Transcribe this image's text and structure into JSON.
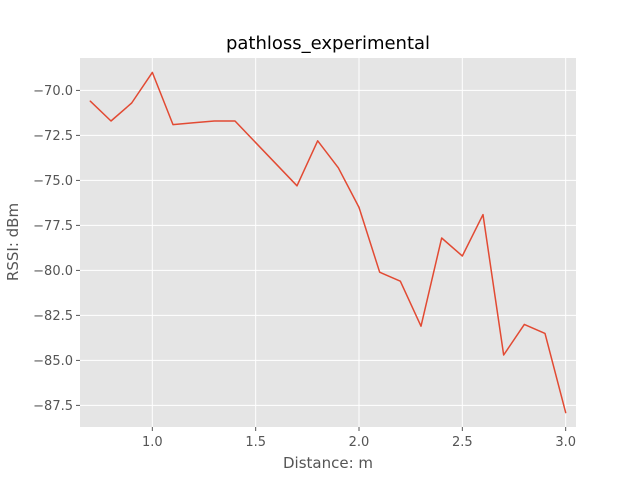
{
  "chart_data": {
    "type": "line",
    "title": "pathloss_experimental",
    "xlabel": "Distance: m",
    "ylabel": "RSSI: dBm",
    "xlim": [
      0.65,
      3.05
    ],
    "ylim": [
      -88.7,
      -68.2
    ],
    "xticks": [
      1.0,
      1.5,
      2.0,
      2.5,
      3.0
    ],
    "xtick_labels": [
      "1.0",
      "1.5",
      "2.0",
      "2.5",
      "3.0"
    ],
    "yticks": [
      -70.0,
      -72.5,
      -75.0,
      -77.5,
      -80.0,
      -82.5,
      -85.0,
      -87.5
    ],
    "ytick_labels": [
      "−70.0",
      "−72.5",
      "−75.0",
      "−77.5",
      "−80.0",
      "−82.5",
      "−85.0",
      "−87.5"
    ],
    "grid": true,
    "style": "ggplot",
    "background_color": "#e5e5e5",
    "line_color": "#e24a33",
    "series": [
      {
        "x": [
          0.7,
          0.8,
          0.9,
          1.0,
          1.1,
          1.2,
          1.3,
          1.4,
          1.7,
          1.8,
          1.9,
          2.0,
          2.1,
          2.2,
          2.3,
          2.4,
          2.5,
          2.6,
          2.7,
          2.8,
          2.9,
          3.0
        ],
        "y": [
          -70.6,
          -71.7,
          -70.7,
          -69.0,
          -71.9,
          -71.8,
          -71.7,
          -71.7,
          -75.3,
          -72.8,
          -74.3,
          -76.5,
          -80.1,
          -80.6,
          -83.1,
          -78.2,
          -79.2,
          -76.9,
          -84.7,
          -83.0,
          -83.5,
          -87.9
        ]
      }
    ]
  }
}
